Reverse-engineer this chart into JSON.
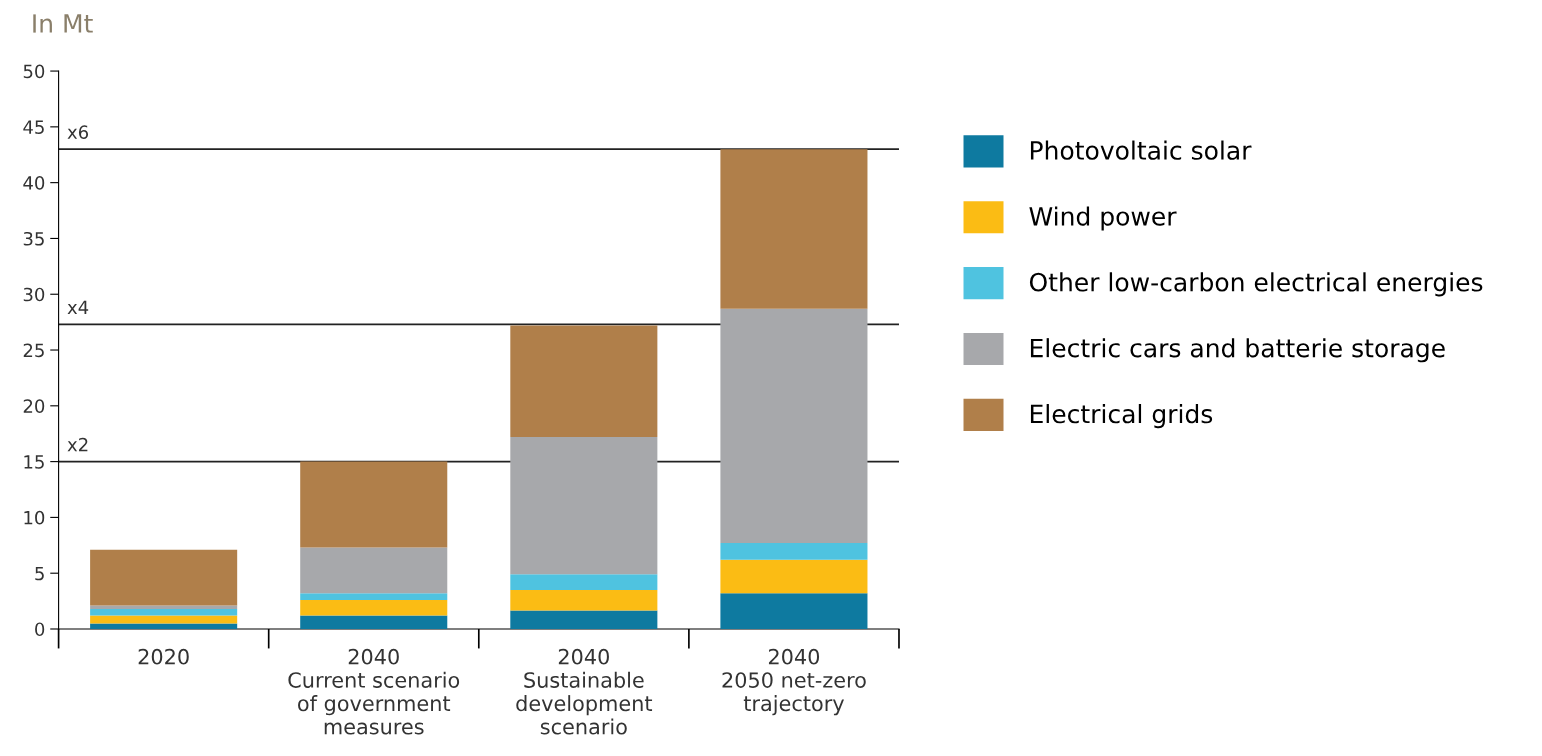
{
  "chart_data": {
    "type": "bar",
    "stacked": true,
    "ylabel": "In Mt",
    "categories": [
      "2020",
      "2040\nCurrent scenario\nof government\nmeasures",
      "2040\nSustainable\ndevelopment\nscenario",
      "2040\n2050 net-zero\ntrajectory"
    ],
    "series": [
      {
        "name": "Photovoltaic solar",
        "color": "#0e7aa0",
        "values": [
          0.5,
          1.2,
          1.65,
          3.2
        ]
      },
      {
        "name": "Wind power",
        "color": "#fbbc14",
        "values": [
          0.7,
          1.4,
          1.85,
          3.0
        ]
      },
      {
        "name": "Other low-carbon electrical energies",
        "color": "#4fc3e0",
        "values": [
          0.6,
          0.6,
          1.4,
          1.5
        ]
      },
      {
        "name": "Electric cars and batterie storage",
        "color": "#a7a8ab",
        "values": [
          0.3,
          4.1,
          12.3,
          21.0
        ]
      },
      {
        "name": "Electrical grids",
        "color": "#b07f4a",
        "values": [
          5.0,
          7.7,
          10.0,
          14.3
        ]
      }
    ],
    "ylim": [
      0,
      50
    ],
    "yticks": [
      0,
      5,
      10,
      15,
      20,
      25,
      30,
      35,
      40,
      45,
      50
    ],
    "ref_lines": [
      {
        "axis": "y",
        "value": 15.0,
        "label": "x2",
        "color": "#222222"
      },
      {
        "axis": "y",
        "value": 27.3,
        "label": "x4",
        "color": "#222222"
      },
      {
        "axis": "y",
        "value": 43.0,
        "label": "x6",
        "color": "#222222"
      }
    ],
    "grid": false,
    "legend": "right"
  }
}
